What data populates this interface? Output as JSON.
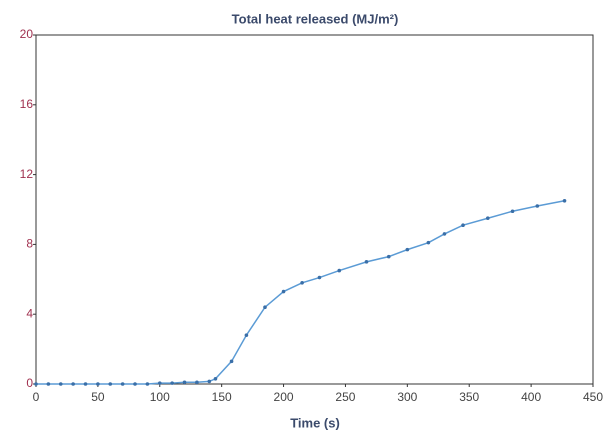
{
  "chart_data": {
    "type": "line",
    "title": "Total heat released (MJ/m²)",
    "x_label": "Time (s)",
    "x": [
      0,
      10,
      20,
      30,
      40,
      50,
      60,
      70,
      80,
      90,
      100,
      110,
      120,
      130,
      140,
      145,
      158,
      170,
      185,
      200,
      215,
      229,
      245,
      267,
      285,
      300,
      317,
      330,
      345,
      365,
      385,
      405,
      427
    ],
    "values": [
      0,
      0,
      0,
      0,
      0,
      0,
      0,
      0,
      0,
      0,
      0.05,
      0.05,
      0.1,
      0.1,
      0.15,
      0.3,
      1.3,
      2.8,
      4.4,
      5.3,
      5.8,
      6.1,
      6.5,
      7.0,
      7.3,
      7.7,
      8.1,
      8.6,
      9.1,
      9.5,
      9.9,
      10.2,
      10.5
    ],
    "color": "#5b9bd5",
    "marker_color": "#3a6fa8",
    "xlim": [
      0,
      450
    ],
    "xticks": [
      0,
      50,
      100,
      150,
      200,
      250,
      300,
      350,
      400,
      450
    ],
    "ylim": [
      0,
      20
    ],
    "yticks": [
      0,
      4,
      8,
      12,
      16,
      20
    ],
    "grid": false
  }
}
